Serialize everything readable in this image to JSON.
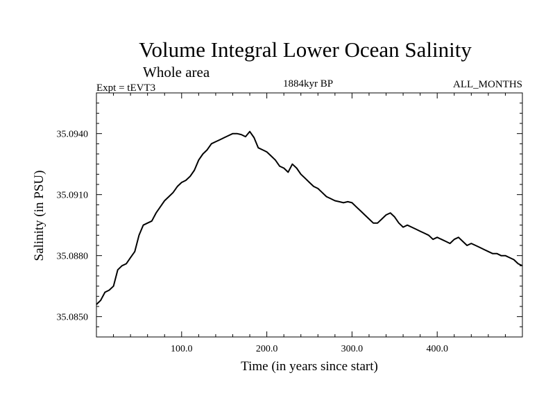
{
  "chart_data": {
    "type": "line",
    "title": "Volume Integral Lower Ocean Salinity",
    "subtitle": "Whole area",
    "left_label": "Expt = tEVT3",
    "center_label": "1884kyr BP",
    "right_label": "ALL_MONTHS",
    "xlabel": "Time (in years since start)",
    "ylabel": "Salinity (in PSU)",
    "xlim": [
      0,
      500
    ],
    "ylim": [
      35.084,
      35.096
    ],
    "x_ticks": [
      100,
      200,
      300,
      400
    ],
    "x_tick_labels": [
      "100.0",
      "200.0",
      "300.0",
      "400.0"
    ],
    "y_ticks": [
      35.085,
      35.088,
      35.091,
      35.094
    ],
    "y_tick_labels": [
      "35.0850",
      "35.0880",
      "35.0910",
      "35.0940"
    ],
    "series": [
      {
        "name": "Salinity",
        "color": "#000000",
        "x": [
          0,
          5,
          10,
          15,
          20,
          25,
          30,
          35,
          40,
          45,
          50,
          55,
          60,
          65,
          70,
          75,
          80,
          85,
          90,
          95,
          100,
          105,
          110,
          115,
          120,
          125,
          130,
          135,
          140,
          145,
          150,
          155,
          160,
          165,
          170,
          175,
          180,
          185,
          190,
          195,
          200,
          205,
          210,
          215,
          220,
          225,
          230,
          235,
          240,
          245,
          250,
          255,
          260,
          265,
          270,
          275,
          280,
          285,
          290,
          295,
          300,
          305,
          310,
          315,
          320,
          325,
          330,
          335,
          340,
          345,
          350,
          355,
          360,
          365,
          370,
          375,
          380,
          385,
          390,
          395,
          400,
          405,
          410,
          415,
          420,
          425,
          430,
          435,
          440,
          445,
          450,
          455,
          460,
          465,
          470,
          475,
          480,
          485,
          490,
          495,
          500
        ],
        "values": [
          35.0856,
          35.0858,
          35.0862,
          35.0863,
          35.0865,
          35.0873,
          35.0875,
          35.0876,
          35.0879,
          35.0882,
          35.089,
          35.0895,
          35.0896,
          35.0897,
          35.0901,
          35.0904,
          35.0907,
          35.0909,
          35.0911,
          35.0914,
          35.0916,
          35.0917,
          35.0919,
          35.0922,
          35.0927,
          35.093,
          35.0932,
          35.0935,
          35.0936,
          35.0937,
          35.0938,
          35.0939,
          35.094,
          35.094,
          35.09395,
          35.09385,
          35.0941,
          35.0938,
          35.0933,
          35.0932,
          35.0931,
          35.0929,
          35.0927,
          35.0924,
          35.0923,
          35.0921,
          35.0925,
          35.0923,
          35.092,
          35.0918,
          35.0916,
          35.0914,
          35.0913,
          35.0911,
          35.0909,
          35.0908,
          35.0907,
          35.09065,
          35.0906,
          35.09065,
          35.0906,
          35.0904,
          35.0902,
          35.09,
          35.0898,
          35.0896,
          35.0896,
          35.0898,
          35.09,
          35.0901,
          35.0899,
          35.0896,
          35.0894,
          35.0895,
          35.0894,
          35.0893,
          35.0892,
          35.0891,
          35.089,
          35.0888,
          35.0889,
          35.0888,
          35.0887,
          35.0886,
          35.0888,
          35.0889,
          35.0887,
          35.0885,
          35.0886,
          35.0885,
          35.0884,
          35.0883,
          35.0882,
          35.0881,
          35.0881,
          35.088,
          35.088,
          35.0879,
          35.0878,
          35.0876,
          35.0875
        ]
      }
    ]
  }
}
